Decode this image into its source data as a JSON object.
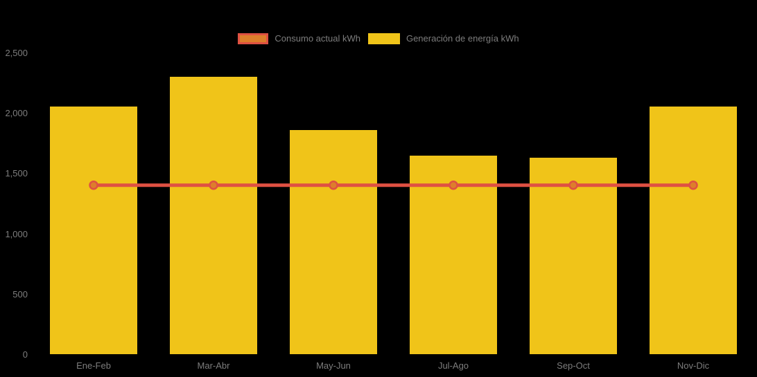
{
  "chart_data": {
    "type": "bar+line",
    "title": "",
    "categories": [
      "Ene-Feb",
      "Mar-Abr",
      "May-Jun",
      "Jul-Ago",
      "Sep-Oct",
      "Nov-Dic"
    ],
    "series": [
      {
        "name": "Consumo actual kWh",
        "type": "line",
        "color": "#DF5142",
        "marker_fill": "#DD7E2B",
        "values": [
          1400,
          1400,
          1400,
          1400,
          1400,
          1400
        ]
      },
      {
        "name": "Generación de energía kWh",
        "type": "bar",
        "color": "#F0C419",
        "values": [
          2050,
          2300,
          1855,
          1645,
          1630,
          2050
        ]
      }
    ],
    "xlabel": "",
    "ylabel": "",
    "ylim": [
      0,
      2500
    ],
    "yticks": [
      0,
      500,
      1000,
      1500,
      2000,
      2500
    ],
    "ytick_labels": [
      "0",
      "500",
      "1,000",
      "1,500",
      "2,000",
      "2,500"
    ],
    "grid": false,
    "legend_position": "top-center",
    "background_color": "#000000",
    "axis_text_color": "#7D7D7D"
  },
  "legend": {
    "items": [
      {
        "label": "Consumo actual kWh",
        "swatch_fill": "#DD7E2B",
        "swatch_border": "#DF5142"
      },
      {
        "label": "Generación de energía kWh",
        "swatch_fill": "#F0C419",
        "swatch_border": ""
      }
    ]
  }
}
